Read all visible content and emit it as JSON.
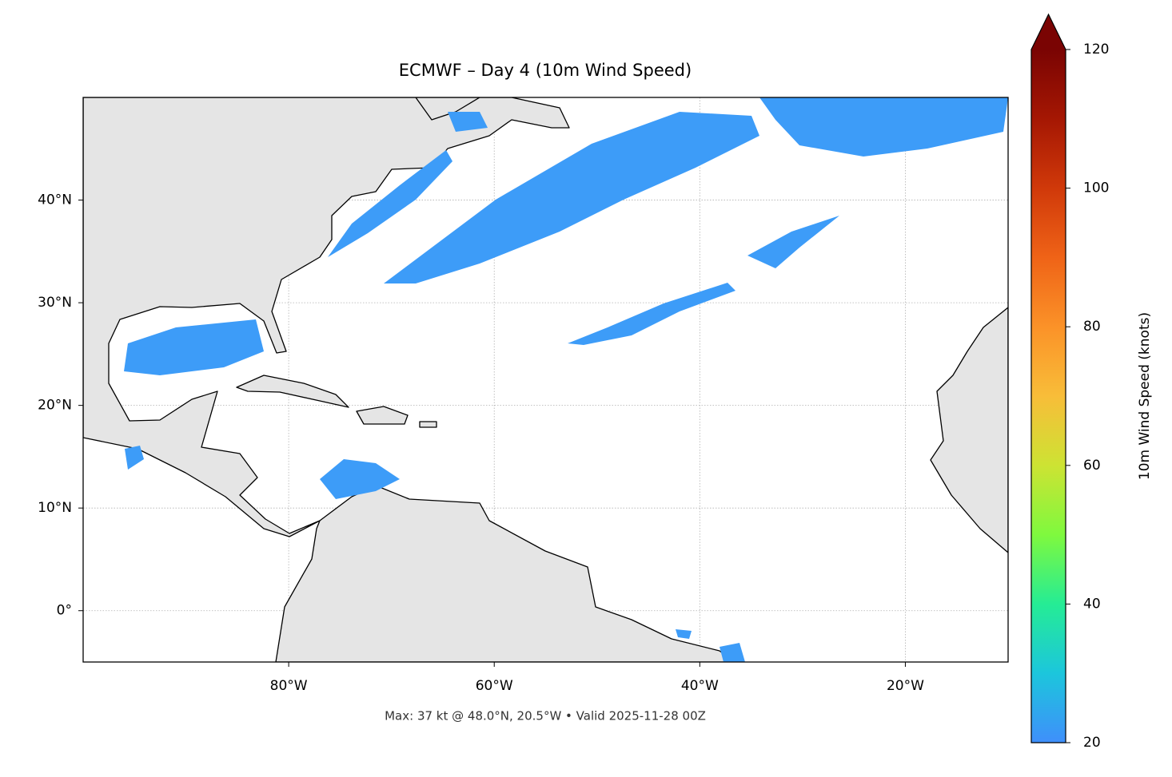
{
  "chart_data": {
    "type": "map",
    "title": "ECMWF – Day 4 (10m Wind Speed)",
    "annotation": "Max: 37 kt @ 48.0°N, 20.5°W • Valid 2025-11-28 00Z",
    "xlim": [
      -100,
      -10
    ],
    "ylim": [
      -5,
      50
    ],
    "xticks": [
      {
        "value": -80,
        "label": "80°W"
      },
      {
        "value": -60,
        "label": "60°W"
      },
      {
        "value": -40,
        "label": "40°W"
      },
      {
        "value": -20,
        "label": "20°W"
      }
    ],
    "yticks": [
      {
        "value": 0,
        "label": "0°"
      },
      {
        "value": 10,
        "label": "10°N"
      },
      {
        "value": 20,
        "label": "20°N"
      },
      {
        "value": 30,
        "label": "30°N"
      },
      {
        "value": 40,
        "label": "40°N"
      }
    ],
    "grid": true,
    "colorbar": {
      "label": "10m Wind Speed (knots)",
      "clim": [
        20,
        120
      ],
      "ticks": [
        20,
        40,
        60,
        80,
        100,
        120
      ],
      "extend": "max",
      "colors": [
        "#3f8ffb",
        "#1cc6dc",
        "#25ec95",
        "#7ff93e",
        "#cde333",
        "#f8bd39",
        "#fb9228",
        "#ef6317",
        "#d0390a",
        "#a51703",
        "#7a0403"
      ]
    }
  }
}
